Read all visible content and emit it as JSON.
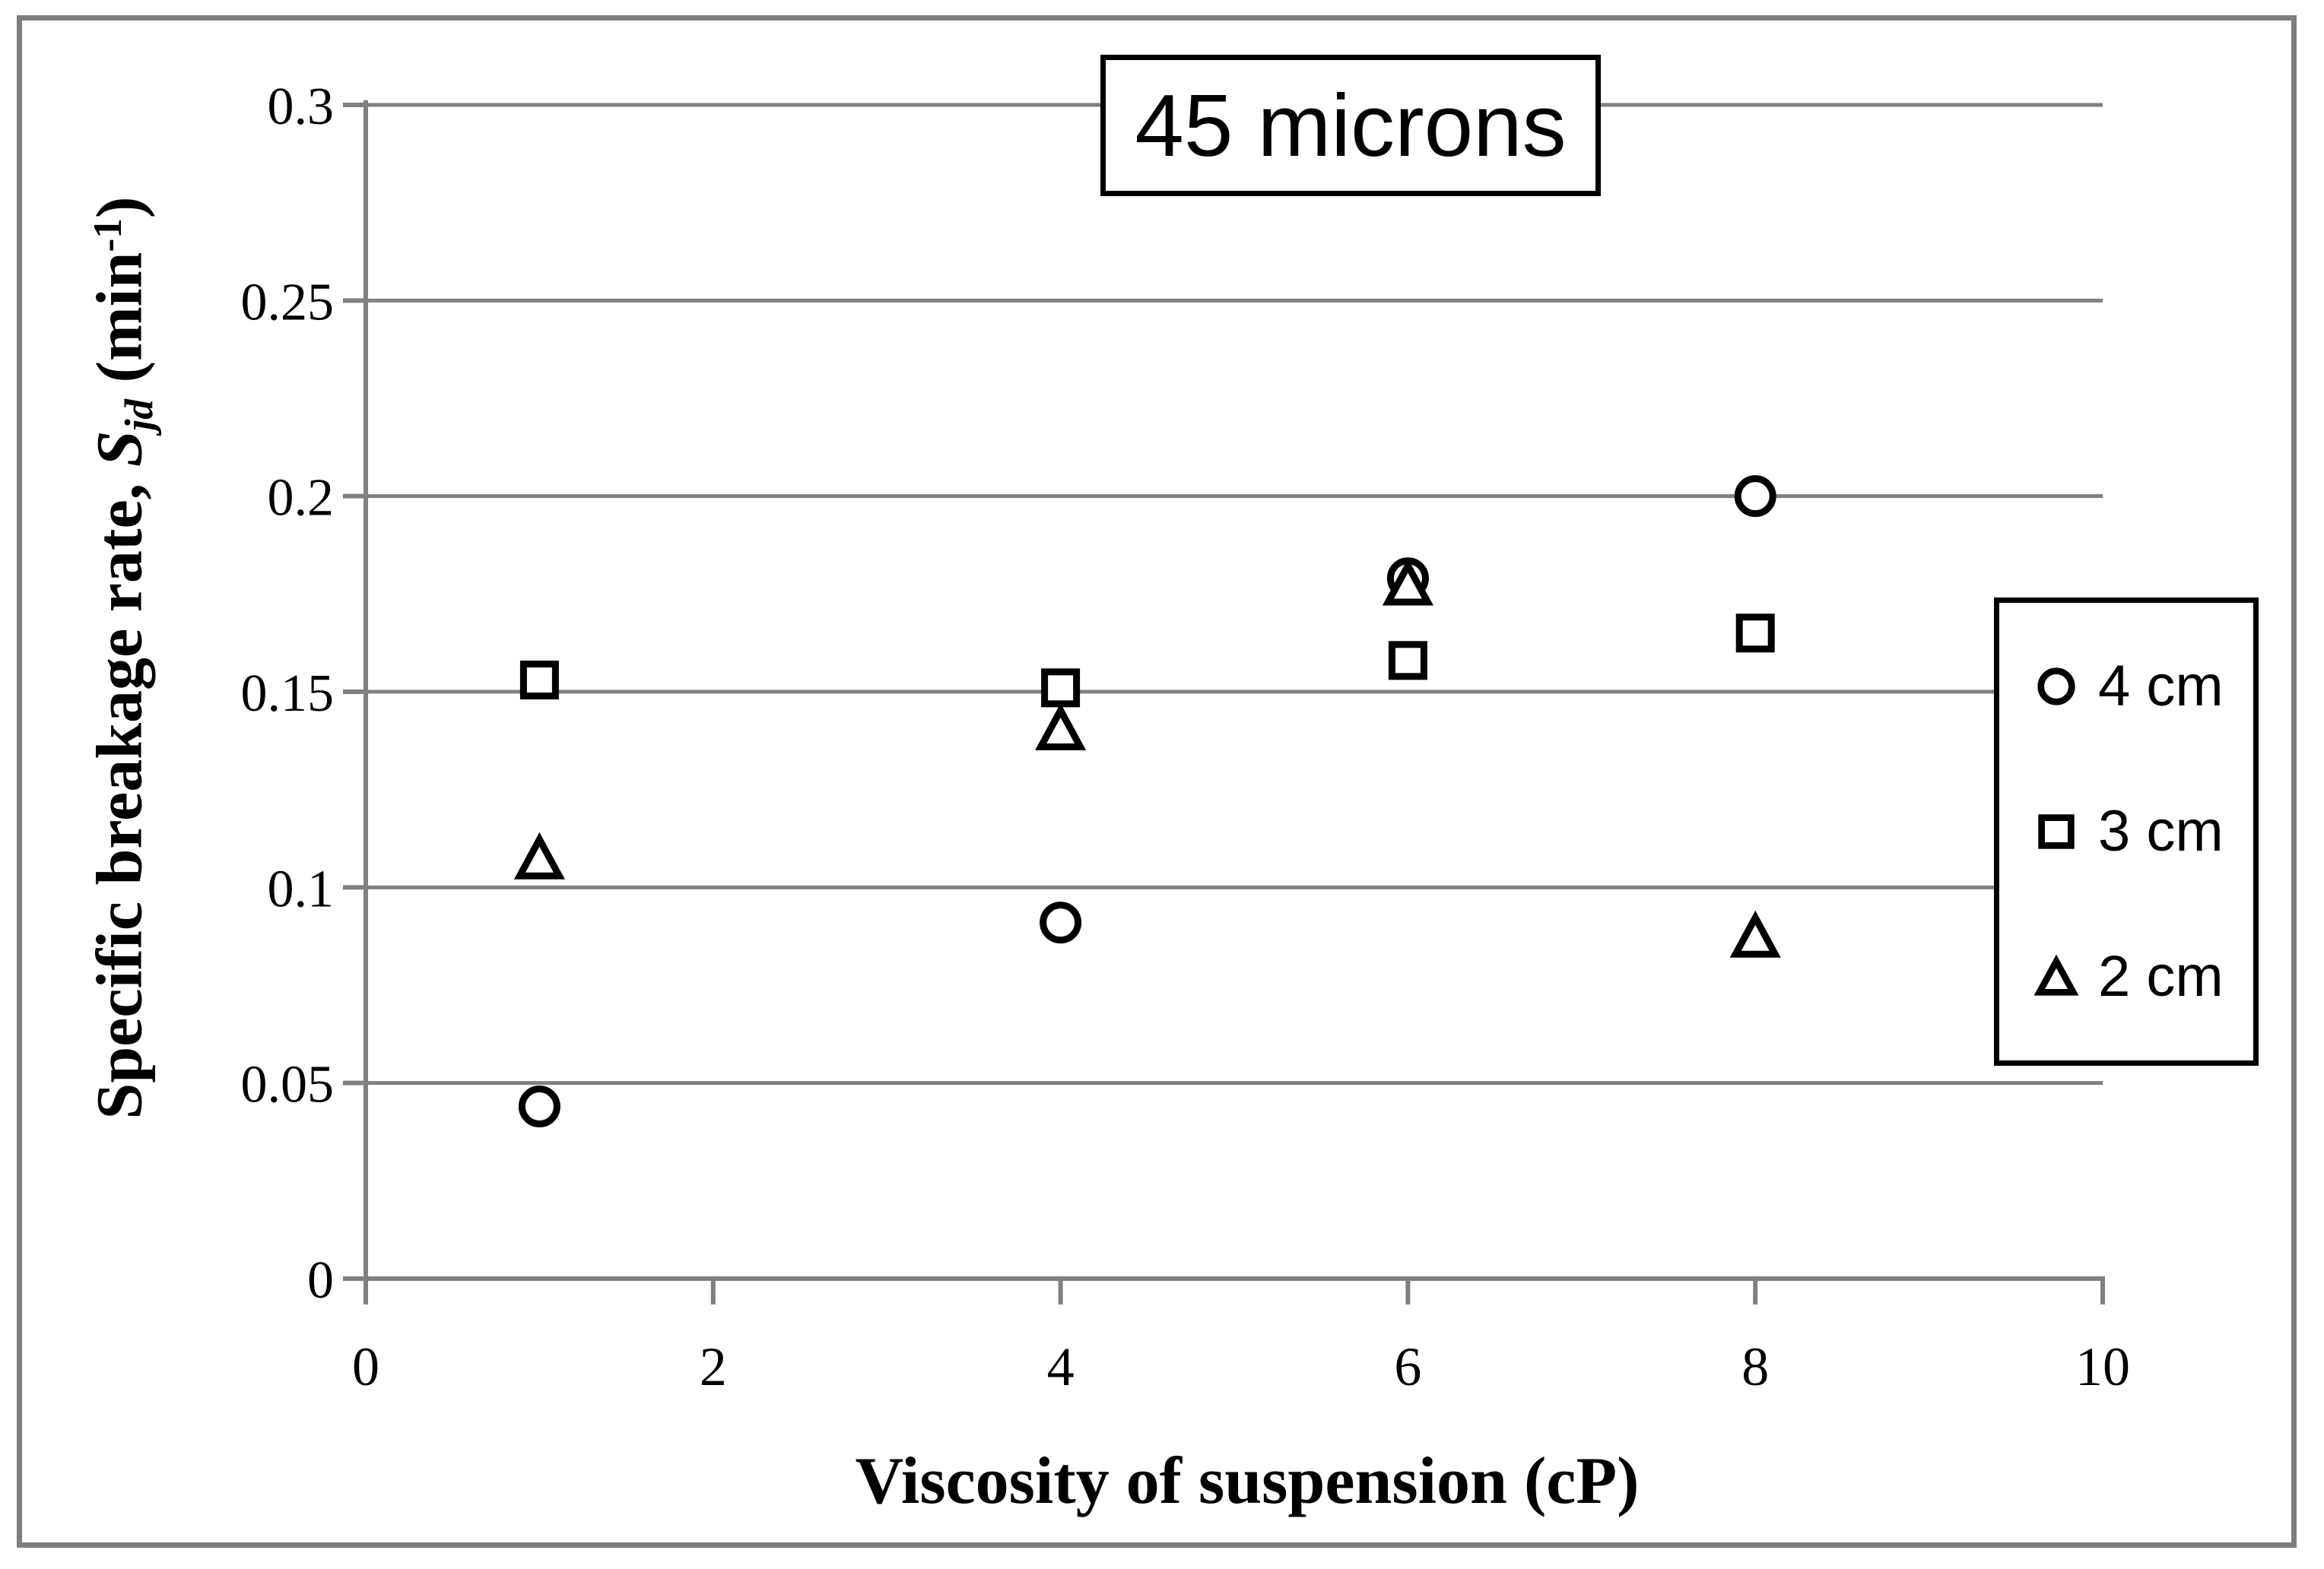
{
  "figure": {
    "title": "45 microns",
    "x_axis_title": "Viscosity of suspension (cP)",
    "y_axis_title": {
      "prefix": "Specific breakage rate, ",
      "symbol": "S",
      "symbol_sub": "jd",
      "unit_open": " (min",
      "unit_sup": "-1",
      "unit_close": ")"
    }
  },
  "legend": {
    "items": [
      {
        "marker": "circle",
        "label": "4 cm"
      },
      {
        "marker": "square",
        "label": "3 cm"
      },
      {
        "marker": "triangle",
        "label": "2 cm"
      }
    ]
  },
  "chart_data": {
    "type": "scatter",
    "title": "45 microns",
    "xlabel": "Viscosity of suspension (cP)",
    "ylabel": "Specific breakage rate, S_jd (min^-1)",
    "xlim": [
      0,
      10
    ],
    "ylim": [
      0,
      0.3
    ],
    "x_ticks": [
      0,
      2,
      4,
      6,
      8,
      10
    ],
    "x_tick_labels": [
      "0",
      "2",
      "4",
      "6",
      "8",
      "10"
    ],
    "y_ticks": [
      0,
      0.05,
      0.1,
      0.15,
      0.2,
      0.25,
      0.3
    ],
    "y_tick_labels": [
      "0",
      "0.05",
      "0.1",
      "0.15",
      "0.2",
      "0.25",
      "0.3"
    ],
    "grid": true,
    "legend_position": "right",
    "series": [
      {
        "name": "4 cm",
        "marker": "circle",
        "points": [
          [
            1,
            0.044
          ],
          [
            4,
            0.091
          ],
          [
            6,
            0.179
          ],
          [
            8,
            0.2
          ]
        ]
      },
      {
        "name": "3 cm",
        "marker": "square",
        "points": [
          [
            1,
            0.153
          ],
          [
            4,
            0.151
          ],
          [
            6,
            0.158
          ],
          [
            8,
            0.165
          ]
        ]
      },
      {
        "name": "2 cm",
        "marker": "triangle",
        "points": [
          [
            1,
            0.107
          ],
          [
            4,
            0.14
          ],
          [
            6,
            0.177
          ],
          [
            8,
            0.087
          ]
        ]
      }
    ]
  },
  "colors": {
    "background": "#ffffff",
    "gridline": "#808080",
    "axis": "#808080",
    "frame_border": "#7e7e7e",
    "box_border": "#000000",
    "marker_stroke": "#000000",
    "marker_fill": "#ffffff",
    "text": "#000000"
  }
}
